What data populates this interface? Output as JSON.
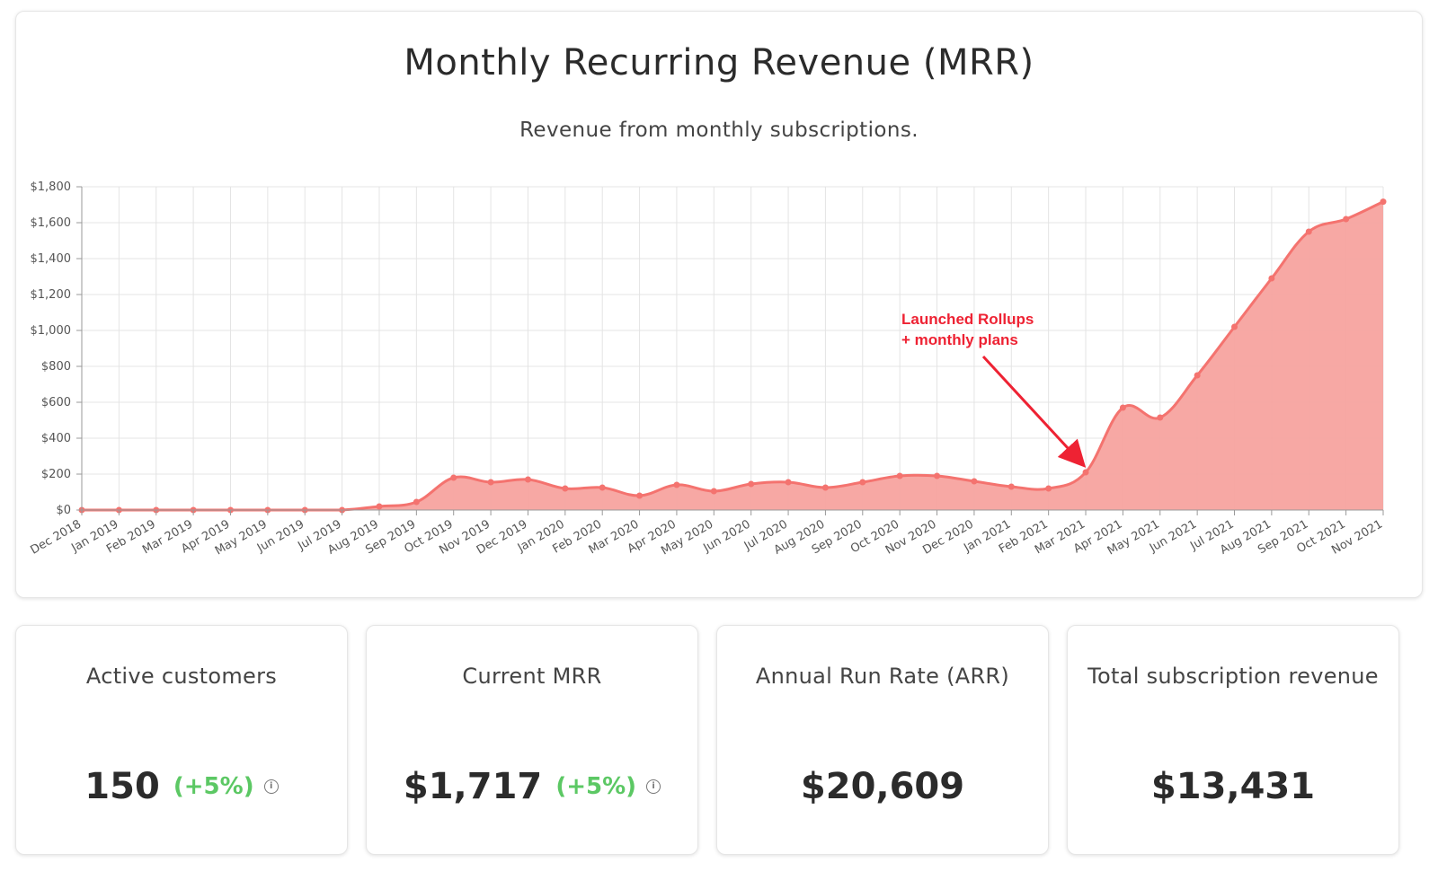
{
  "chart_data": {
    "type": "area",
    "title": "Monthly Recurring Revenue (MRR)",
    "subtitle": "Revenue from monthly subscriptions.",
    "categories": [
      "Dec 2018",
      "Jan 2019",
      "Feb 2019",
      "Mar 2019",
      "Apr 2019",
      "May 2019",
      "Jun 2019",
      "Jul 2019",
      "Aug 2019",
      "Sep 2019",
      "Oct 2019",
      "Nov 2019",
      "Dec 2019",
      "Jan 2020",
      "Feb 2020",
      "Mar 2020",
      "Apr 2020",
      "May 2020",
      "Jun 2020",
      "Jul 2020",
      "Aug 2020",
      "Sep 2020",
      "Oct 2020",
      "Nov 2020",
      "Dec 2020",
      "Jan 2021",
      "Feb 2021",
      "Mar 2021",
      "Apr 2021",
      "May 2021",
      "Jun 2021",
      "Jul 2021",
      "Aug 2021",
      "Sep 2021",
      "Oct 2021",
      "Nov 2021"
    ],
    "values": [
      0,
      0,
      0,
      0,
      0,
      0,
      0,
      0,
      20,
      45,
      180,
      155,
      170,
      120,
      125,
      80,
      140,
      105,
      145,
      155,
      125,
      155,
      190,
      190,
      160,
      130,
      120,
      210,
      570,
      515,
      750,
      1020,
      1290,
      1550,
      1620,
      1717
    ],
    "ylim": [
      0,
      1800
    ],
    "yticks": [
      "$0",
      "$200",
      "$400",
      "$600",
      "$800",
      "$1,000",
      "$1,200",
      "$1,400",
      "$1,600",
      "$1,800"
    ],
    "grid": true,
    "color": "#f4736f",
    "fill_color": "#f7a39f",
    "annotation": {
      "lines": [
        "Launched Rollups",
        "+ monthly plans"
      ],
      "target_category": "Mar 2021",
      "color": "#ee2233"
    }
  },
  "stats": [
    {
      "label": "Active customers",
      "value": "150",
      "change": "(+5%)",
      "info": "i"
    },
    {
      "label": "Current MRR",
      "value": "$1,717",
      "change": "(+5%)",
      "info": "i"
    },
    {
      "label": "Annual Run Rate (ARR)",
      "value": "$20,609"
    },
    {
      "label": "Total subscription revenue",
      "value": "$13,431"
    }
  ],
  "colors": {
    "positive_change": "#5cc864"
  }
}
